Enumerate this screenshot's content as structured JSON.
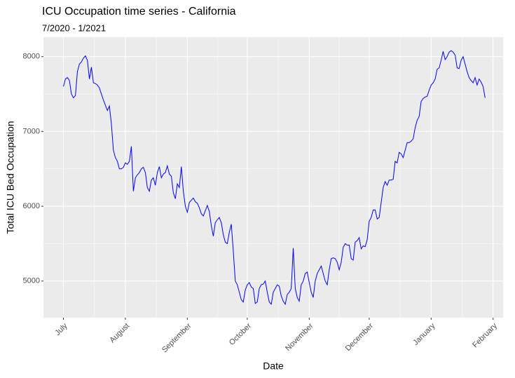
{
  "chart_data": {
    "type": "line",
    "title": "ICU Occupation time series - California",
    "subtitle": "7/2020 - 1/2021",
    "x_label": "Date",
    "y_label": "Total ICU Bed Occupation",
    "color": "#0000ff",
    "grid": true,
    "xlim": [
      -10,
      220
    ],
    "xticks": [
      {
        "value": 0,
        "label": "July"
      },
      {
        "value": 31,
        "label": "August"
      },
      {
        "value": 62,
        "label": "September"
      },
      {
        "value": 92,
        "label": "October"
      },
      {
        "value": 123,
        "label": "November"
      },
      {
        "value": 153,
        "label": "December"
      },
      {
        "value": 184,
        "label": "January"
      },
      {
        "value": 215,
        "label": "February"
      }
    ],
    "ylim": [
      4510,
      8260
    ],
    "yticks": [
      5000,
      6000,
      7000,
      8000
    ],
    "values": [
      7600,
      7700,
      7720,
      7680,
      7500,
      7450,
      7480,
      7800,
      7900,
      7930,
      7980,
      8010,
      7950,
      7700,
      7860,
      7650,
      7640,
      7620,
      7580,
      7500,
      7420,
      7350,
      7280,
      7340,
      7100,
      6750,
      6650,
      6600,
      6500,
      6500,
      6520,
      6580,
      6560,
      6600,
      6800,
      6200,
      6380,
      6420,
      6450,
      6500,
      6520,
      6450,
      6250,
      6200,
      6350,
      6380,
      6280,
      6450,
      6530,
      6380,
      6430,
      6450,
      6540,
      6430,
      6400,
      6180,
      6100,
      6300,
      6250,
      6530,
      6200,
      6000,
      5920,
      6050,
      6080,
      6110,
      6060,
      6040,
      5980,
      5900,
      5870,
      5940,
      6010,
      5930,
      5740,
      5600,
      5780,
      5820,
      5850,
      5780,
      5620,
      5520,
      5500,
      5650,
      5760,
      5400,
      5000,
      4950,
      4850,
      4750,
      4720,
      4880,
      4950,
      4980,
      4920,
      4900,
      4700,
      4720,
      4900,
      4950,
      4960,
      5000,
      4850,
      4720,
      4690,
      4850,
      4900,
      4950,
      4930,
      4800,
      4730,
      4690,
      4820,
      4850,
      4900,
      5440,
      4900,
      4780,
      4730,
      4950,
      5000,
      5100,
      5120,
      4980,
      4850,
      4780,
      5000,
      5100,
      5150,
      5200,
      5100,
      5000,
      4950,
      5150,
      5300,
      5310,
      5300,
      5250,
      5150,
      5250,
      5450,
      5500,
      5480,
      5480,
      5300,
      5280,
      5520,
      5540,
      5580,
      5430,
      5470,
      5460,
      5550,
      5800,
      5850,
      5950,
      5950,
      5830,
      5850,
      6050,
      6250,
      6330,
      6280,
      6350,
      6350,
      6360,
      6600,
      6580,
      6720,
      6700,
      6650,
      6750,
      6850,
      6850,
      6870,
      6900,
      7050,
      7150,
      7200,
      7400,
      7440,
      7460,
      7470,
      7550,
      7620,
      7650,
      7700,
      7830,
      7850,
      7950,
      8070,
      7960,
      8000,
      8060,
      8080,
      8060,
      8020,
      7850,
      7840,
      7950,
      8000,
      7900,
      7800,
      7720,
      7680,
      7650,
      7720,
      7620,
      7700,
      7660,
      7600,
      7450
    ]
  }
}
